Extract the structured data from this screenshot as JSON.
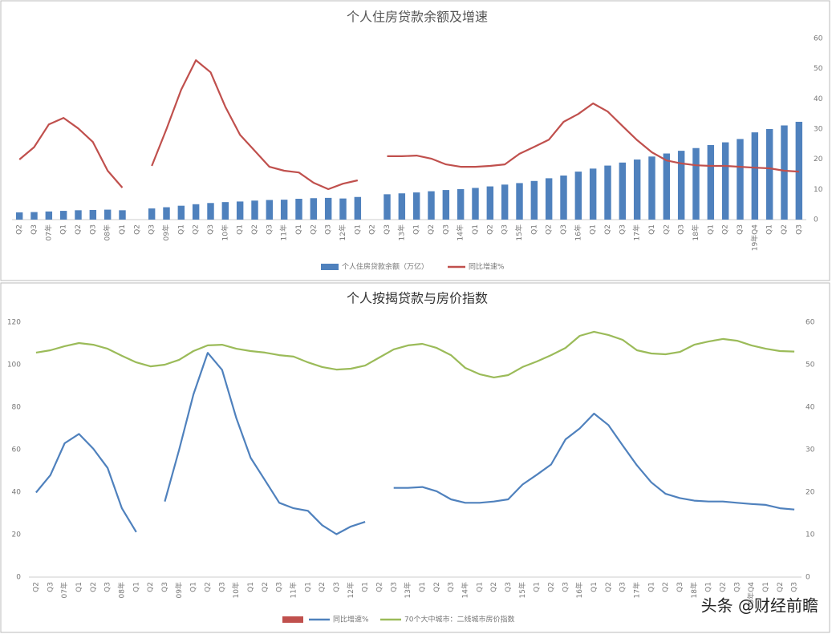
{
  "chart_data": [
    {
      "type": "bar",
      "title": "个人住房贷款余额及增速",
      "categories": [
        "Q2",
        "Q3",
        "07年",
        "Q1",
        "Q2",
        "Q3",
        "08年",
        "Q1",
        "Q2",
        "Q3",
        "09年",
        "Q1",
        "Q2",
        "Q3",
        "10年",
        "Q1",
        "Q2",
        "Q3",
        "11年",
        "Q1",
        "Q2",
        "Q3",
        "12年",
        "Q1",
        "Q2",
        "Q3",
        "13年",
        "Q1",
        "Q2",
        "Q3",
        "14年",
        "Q1",
        "Q2",
        "Q3",
        "15年",
        "Q1",
        "Q2",
        "Q3",
        "16年",
        "Q1",
        "Q2",
        "Q3",
        "17年",
        "Q1",
        "Q2",
        "Q3",
        "18年",
        "Q1",
        "Q2",
        "Q3",
        "19年Q4",
        "Q1",
        "Q2",
        "Q3"
      ],
      "ylim": [
        0,
        60
      ],
      "yticks": [
        0,
        10,
        20,
        30,
        40,
        50,
        60
      ],
      "series": [
        {
          "name": "个人住房贷款余额（万亿）",
          "type": "bar",
          "color": "#4f81bd",
          "values": [
            2.4,
            2.5,
            2.7,
            2.9,
            3.1,
            3.2,
            3.3,
            3.1,
            null,
            3.7,
            4.1,
            4.6,
            5.1,
            5.5,
            5.8,
            6.0,
            6.3,
            6.5,
            6.6,
            6.9,
            7.1,
            7.2,
            7.0,
            7.5,
            null,
            8.4,
            8.7,
            9.0,
            9.4,
            9.8,
            10.1,
            10.5,
            11.0,
            11.6,
            12.1,
            12.8,
            13.7,
            14.6,
            15.9,
            16.9,
            17.9,
            18.9,
            19.9,
            20.9,
            21.9,
            22.8,
            23.7,
            24.7,
            25.6,
            26.7,
            28.9,
            30.0,
            31.2,
            32.4
          ]
        },
        {
          "name": "同比增速%",
          "type": "line",
          "color": "#c0504d",
          "values": [
            19.9,
            24,
            31.5,
            33.7,
            30.2,
            25.7,
            16.2,
            10.6,
            null,
            17.8,
            30,
            43,
            52.8,
            48.8,
            37.4,
            28.1,
            22.8,
            17.5,
            16.2,
            15.6,
            12.2,
            10.1,
            11.9,
            13,
            null,
            21,
            21,
            21.2,
            20.2,
            18.3,
            17.5,
            17.5,
            17.8,
            18.3,
            21.8,
            24.1,
            26.5,
            32.4,
            35,
            38.5,
            35.8,
            31,
            26.3,
            22.3,
            19.6,
            18.6,
            18,
            17.8,
            17.8,
            17.5,
            17.2,
            17,
            16.2,
            15.9
          ]
        }
      ]
    },
    {
      "type": "line",
      "title": "个人按揭贷款与房价指数",
      "categories": [
        "Q2",
        "Q3",
        "07年",
        "Q1",
        "Q2",
        "Q3",
        "08年",
        "Q1",
        "Q2",
        "Q3",
        "09年",
        "Q1",
        "Q2",
        "Q3",
        "10年",
        "Q1",
        "Q2",
        "Q3",
        "11年",
        "Q1",
        "Q2",
        "Q3",
        "12年",
        "Q1",
        "Q2",
        "Q3",
        "13年",
        "Q1",
        "Q2",
        "Q3",
        "14年",
        "Q1",
        "Q2",
        "Q3",
        "15年",
        "Q1",
        "Q2",
        "Q3",
        "16年",
        "Q1",
        "Q2",
        "Q3",
        "17年",
        "Q1",
        "Q2",
        "Q3",
        "18年",
        "Q1",
        "Q2",
        "Q3",
        "19年Q4",
        "Q1",
        "Q2",
        "Q3"
      ],
      "ylim": [
        0,
        120
      ],
      "yticks": [
        0,
        20,
        40,
        60,
        80,
        100,
        120
      ],
      "y2lim": [
        0,
        60
      ],
      "y2ticks": [
        0,
        10,
        20,
        30,
        40,
        50,
        60
      ],
      "series": [
        {
          "name": "同比增速%",
          "axis": "y2",
          "color": "#4f81bd",
          "values": [
            19.9,
            24,
            31.5,
            33.7,
            30.2,
            25.7,
            16.2,
            10.6,
            null,
            17.8,
            30,
            43,
            52.8,
            48.8,
            37.4,
            28.1,
            22.8,
            17.5,
            16.2,
            15.6,
            12.2,
            10.1,
            11.9,
            13,
            null,
            21,
            21,
            21.2,
            20.2,
            18.3,
            17.5,
            17.5,
            17.8,
            18.3,
            21.8,
            24.1,
            26.5,
            32.4,
            35,
            38.5,
            35.8,
            31,
            26.3,
            22.3,
            19.6,
            18.6,
            18,
            17.8,
            17.8,
            17.5,
            17.2,
            17,
            16.2,
            15.9
          ]
        },
        {
          "name": "70个大中城市：二线城市房价指数",
          "color": "#9bbb59",
          "values": [
            105.7,
            106.8,
            108.7,
            110.2,
            109.4,
            107.5,
            104.2,
            101.1,
            99.2,
            100,
            102.3,
            106.4,
            109.1,
            109.4,
            107.5,
            106.4,
            105.7,
            104.5,
            103.8,
            101.1,
            98.9,
            97.7,
            98.1,
            99.6,
            103.4,
            107.2,
            109.1,
            109.8,
            107.9,
            104.5,
            98.5,
            95.5,
            94,
            95.1,
            98.9,
            101.5,
            104.5,
            107.9,
            113.6,
            115.5,
            114,
            111.7,
            106.8,
            105.3,
            104.9,
            106,
            109.4,
            110.9,
            112.1,
            111.3,
            109.1,
            107.5,
            106.4,
            106.2
          ]
        }
      ]
    }
  ],
  "watermark": "头条 @财经前瞻"
}
